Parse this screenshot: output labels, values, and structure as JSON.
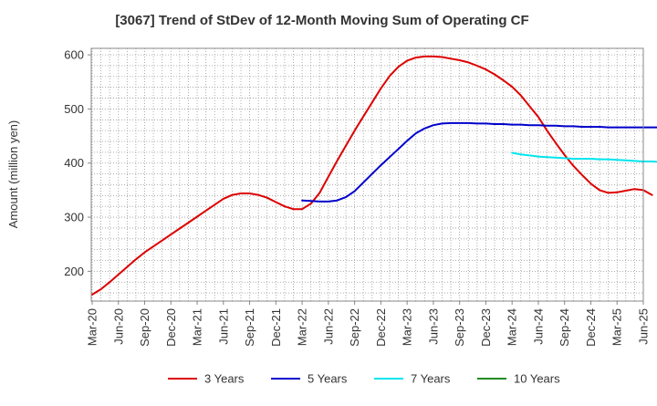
{
  "chart_data": {
    "type": "line",
    "title": "[3067]  Trend of StDev of 12-Month Moving Sum of Operating CF",
    "ylabel": "Amount (million yen)",
    "xlabel": "",
    "ylim": [
      145,
      612
    ],
    "yticks": [
      200,
      300,
      400,
      500,
      600
    ],
    "x_ticks": [
      "Mar-20",
      "Jun-20",
      "Sep-20",
      "Dec-20",
      "Mar-21",
      "Jun-21",
      "Sep-21",
      "Dec-21",
      "Mar-22",
      "Jun-22",
      "Sep-22",
      "Dec-22",
      "Mar-23",
      "Jun-23",
      "Sep-23",
      "Dec-23",
      "Mar-24",
      "Jun-24",
      "Sep-24",
      "Dec-24",
      "Mar-25",
      "Jun-25"
    ],
    "grid": true,
    "legend_position": "bottom",
    "series": [
      {
        "name": "3 Years",
        "color": "#dd0000",
        "points": [
          [
            "Mar-20",
            157
          ],
          [
            "Apr-20",
            167
          ],
          [
            "May-20",
            180
          ],
          [
            "Jun-20",
            194
          ],
          [
            "Jul-20",
            208
          ],
          [
            "Aug-20",
            222
          ],
          [
            "Sep-20",
            235
          ],
          [
            "Oct-20",
            246
          ],
          [
            "Nov-20",
            257
          ],
          [
            "Dec-20",
            268
          ],
          [
            "Jan-21",
            279
          ],
          [
            "Feb-21",
            290
          ],
          [
            "Mar-21",
            301
          ],
          [
            "Apr-21",
            312
          ],
          [
            "May-21",
            323
          ],
          [
            "Jun-21",
            334
          ],
          [
            "Jul-21",
            341
          ],
          [
            "Aug-21",
            344
          ],
          [
            "Sep-21",
            344
          ],
          [
            "Oct-21",
            341
          ],
          [
            "Nov-21",
            336
          ],
          [
            "Dec-21",
            328
          ],
          [
            "Jan-22",
            320
          ],
          [
            "Feb-22",
            315
          ],
          [
            "Mar-22",
            315
          ],
          [
            "Apr-22",
            325
          ],
          [
            "May-22",
            345
          ],
          [
            "Jun-22",
            375
          ],
          [
            "Jul-22",
            404
          ],
          [
            "Aug-22",
            432
          ],
          [
            "Sep-22",
            460
          ],
          [
            "Oct-22",
            486
          ],
          [
            "Nov-22",
            512
          ],
          [
            "Dec-22",
            538
          ],
          [
            "Jan-23",
            561
          ],
          [
            "Feb-23",
            578
          ],
          [
            "Mar-23",
            589
          ],
          [
            "Apr-23",
            595
          ],
          [
            "May-23",
            597
          ],
          [
            "Jun-23",
            597
          ],
          [
            "Jul-23",
            596
          ],
          [
            "Aug-23",
            593
          ],
          [
            "Sep-23",
            590
          ],
          [
            "Oct-23",
            586
          ],
          [
            "Nov-23",
            580
          ],
          [
            "Dec-23",
            573
          ],
          [
            "Jan-24",
            564
          ],
          [
            "Feb-24",
            553
          ],
          [
            "Mar-24",
            541
          ],
          [
            "Apr-24",
            525
          ],
          [
            "May-24",
            505
          ],
          [
            "Jun-24",
            485
          ],
          [
            "Jul-24",
            460
          ],
          [
            "Aug-24",
            437
          ],
          [
            "Sep-24",
            415
          ],
          [
            "Oct-24",
            395
          ],
          [
            "Nov-24",
            378
          ],
          [
            "Dec-24",
            362
          ],
          [
            "Jan-25",
            350
          ],
          [
            "Feb-25",
            345
          ],
          [
            "Mar-25",
            346
          ],
          [
            "Apr-25",
            349
          ],
          [
            "May-25",
            352
          ],
          [
            "Jun-25",
            350
          ],
          [
            "Jul-25",
            341
          ]
        ]
      },
      {
        "name": "5 Years",
        "color": "#0000cc",
        "points": [
          [
            "Mar-22",
            331
          ],
          [
            "Apr-22",
            330
          ],
          [
            "May-22",
            329
          ],
          [
            "Jun-22",
            329
          ],
          [
            "Jul-22",
            331
          ],
          [
            "Aug-22",
            337
          ],
          [
            "Sep-22",
            348
          ],
          [
            "Oct-22",
            364
          ],
          [
            "Nov-22",
            380
          ],
          [
            "Dec-22",
            396
          ],
          [
            "Jan-23",
            411
          ],
          [
            "Feb-23",
            426
          ],
          [
            "Mar-23",
            441
          ],
          [
            "Apr-23",
            455
          ],
          [
            "May-23",
            464
          ],
          [
            "Jun-23",
            470
          ],
          [
            "Jul-23",
            473
          ],
          [
            "Aug-23",
            474
          ],
          [
            "Sep-23",
            474
          ],
          [
            "Oct-23",
            474
          ],
          [
            "Nov-23",
            473
          ],
          [
            "Dec-23",
            473
          ],
          [
            "Jan-24",
            472
          ],
          [
            "Feb-24",
            472
          ],
          [
            "Mar-24",
            471
          ],
          [
            "Apr-24",
            471
          ],
          [
            "May-24",
            470
          ],
          [
            "Jun-24",
            470
          ],
          [
            "Jul-24",
            469
          ],
          [
            "Aug-24",
            469
          ],
          [
            "Sep-24",
            468
          ],
          [
            "Oct-24",
            468
          ],
          [
            "Nov-24",
            467
          ],
          [
            "Dec-24",
            467
          ],
          [
            "Jan-25",
            467
          ],
          [
            "Feb-25",
            466
          ],
          [
            "Mar-25",
            466
          ],
          [
            "Apr-25",
            466
          ],
          [
            "May-25",
            466
          ],
          [
            "Jun-25",
            466
          ],
          [
            "Jul-25",
            466
          ],
          [
            "Aug-25",
            466
          ],
          [
            "Sep-25",
            465
          ],
          [
            "Oct-25",
            464
          ],
          [
            "Nov-25",
            463
          ]
        ]
      },
      {
        "name": "7 Years",
        "color": "#00e5ee",
        "points": [
          [
            "Mar-24",
            419
          ],
          [
            "Apr-24",
            416
          ],
          [
            "May-24",
            414
          ],
          [
            "Jun-24",
            412
          ],
          [
            "Jul-24",
            411
          ],
          [
            "Aug-24",
            410
          ],
          [
            "Sep-24",
            409
          ],
          [
            "Oct-24",
            408
          ],
          [
            "Nov-24",
            408
          ],
          [
            "Dec-24",
            408
          ],
          [
            "Jan-25",
            407
          ],
          [
            "Feb-25",
            407
          ],
          [
            "Mar-25",
            406
          ],
          [
            "Apr-25",
            405
          ],
          [
            "May-25",
            404
          ],
          [
            "Jun-25",
            403
          ],
          [
            "Jul-25",
            403
          ],
          [
            "Aug-25",
            402
          ]
        ]
      },
      {
        "name": "10 Years",
        "color": "#228b22",
        "points": []
      }
    ]
  }
}
